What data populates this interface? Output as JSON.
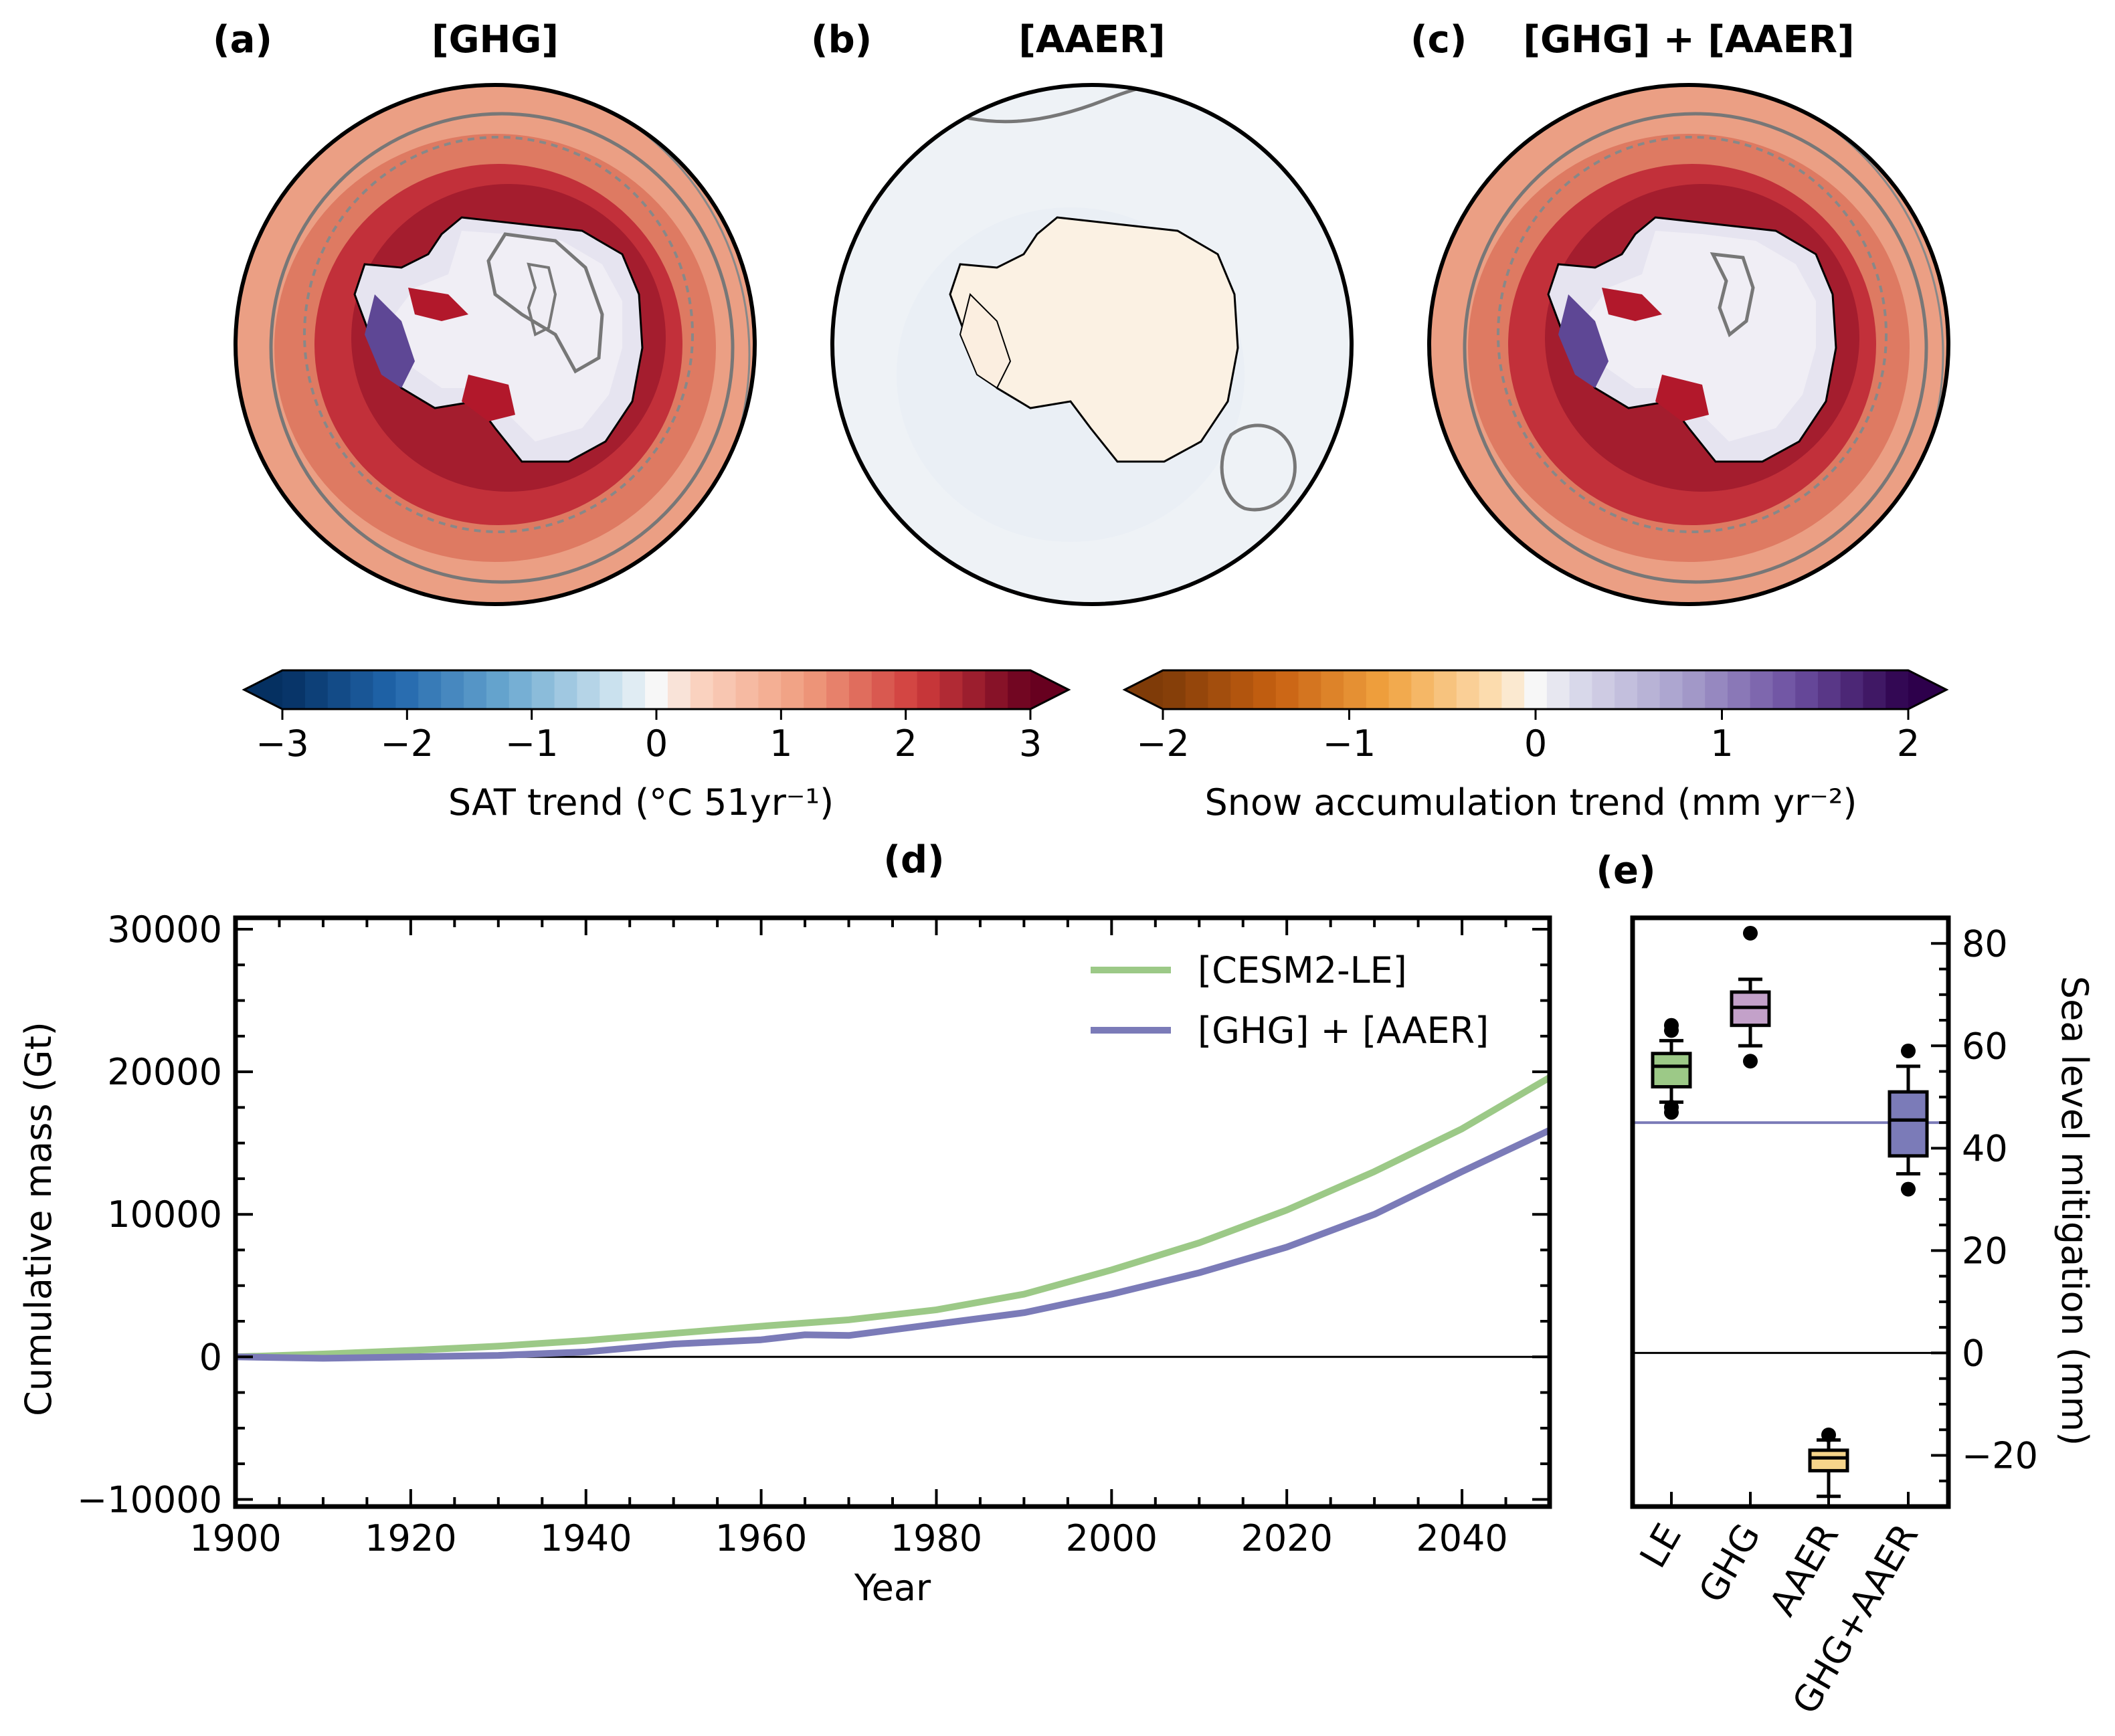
{
  "panels": {
    "a": {
      "label": "(a)",
      "title": "[GHG]"
    },
    "b": {
      "label": "(b)",
      "title": "[AAER]"
    },
    "c": {
      "label": "(c)",
      "title": "[GHG] + [AAER]"
    },
    "d": {
      "label": "(d)"
    },
    "e": {
      "label": "(e)"
    }
  },
  "colorbars": [
    {
      "name": "sat",
      "label": "SAT trend (°C 51yr⁻¹)",
      "ticks": [
        "−3",
        "−2",
        "−1",
        "0",
        "1",
        "2",
        "3"
      ],
      "range": [
        -3,
        3
      ],
      "colors": "RdBu_r"
    },
    {
      "name": "snow",
      "label": "Snow accumulation trend (mm yr⁻²)",
      "ticks": [
        "−2",
        "−1",
        "0",
        "1",
        "2"
      ],
      "range": [
        -2,
        2
      ],
      "colors": "PuOr"
    }
  ],
  "chart_data": [
    {
      "type": "line",
      "panel": "d",
      "xlabel": "Year",
      "ylabel": "Cumulative mass (Gt)",
      "xlim": [
        1900,
        2050
      ],
      "ylim": [
        -10500,
        30800
      ],
      "xticks": [
        "1900",
        "1920",
        "1940",
        "1960",
        "1980",
        "2000",
        "2020",
        "2040"
      ],
      "yticks": [
        "30000",
        "20000",
        "10000",
        "0",
        "−10000"
      ],
      "zero_line": true,
      "legend_placement": "upper-right",
      "series": [
        {
          "name": "[CESM2-LE]",
          "color": "#9cc987",
          "x": [
            1900,
            1910,
            1920,
            1930,
            1940,
            1950,
            1960,
            1970,
            1980,
            1990,
            2000,
            2010,
            2020,
            2030,
            2040,
            2050
          ],
          "y": [
            0,
            200,
            450,
            750,
            1150,
            1650,
            2150,
            2600,
            3300,
            4400,
            6100,
            8000,
            10300,
            13000,
            16000,
            19600
          ]
        },
        {
          "name": "[GHG] + [AAER]",
          "color": "#7b7bb8",
          "x": [
            1900,
            1910,
            1920,
            1930,
            1940,
            1950,
            1960,
            1965,
            1970,
            1980,
            1990,
            2000,
            2010,
            2020,
            2030,
            2040,
            2050
          ],
          "y": [
            0,
            -100,
            0,
            100,
            350,
            900,
            1200,
            1550,
            1500,
            2300,
            3100,
            4400,
            5900,
            7700,
            10000,
            13000,
            15900
          ]
        }
      ]
    },
    {
      "type": "box",
      "panel": "e",
      "ylabel": "Sea level mitigation (mm)",
      "ylim": [
        -30,
        85
      ],
      "yticks": [
        "80",
        "60",
        "40",
        "20",
        "0",
        "−20"
      ],
      "categories": [
        "LE",
        "GHG",
        "AAER",
        "GHG+AAER"
      ],
      "reference_line": {
        "value": 45,
        "color": "#7b7bb8"
      },
      "boxes": [
        {
          "category": "LE",
          "color": "#9cc987",
          "q1": 52,
          "median": 56,
          "q3": 58.5,
          "whisker_low": 49,
          "whisker_high": 61,
          "outliers": [
            63,
            64,
            48,
            47
          ]
        },
        {
          "category": "GHG",
          "color": "#c3a1c9",
          "q1": 64,
          "median": 67.5,
          "q3": 70.5,
          "whisker_low": 60,
          "whisker_high": 73,
          "outliers": [
            82,
            57
          ]
        },
        {
          "category": "AAER",
          "color": "#f6d58b",
          "q1": -23,
          "median": -20.5,
          "q3": -19,
          "whisker_low": -28,
          "whisker_high": -17,
          "outliers": [
            -16
          ]
        },
        {
          "category": "GHG+AAER",
          "color": "#7b7bb8",
          "q1": 38.5,
          "median": 45.5,
          "q3": 51,
          "whisker_low": 35,
          "whisker_high": 56,
          "outliers": [
            59,
            32
          ]
        }
      ]
    }
  ],
  "colors": {
    "accent_green": "#9cc987",
    "accent_purple": "#7b7bb8"
  }
}
